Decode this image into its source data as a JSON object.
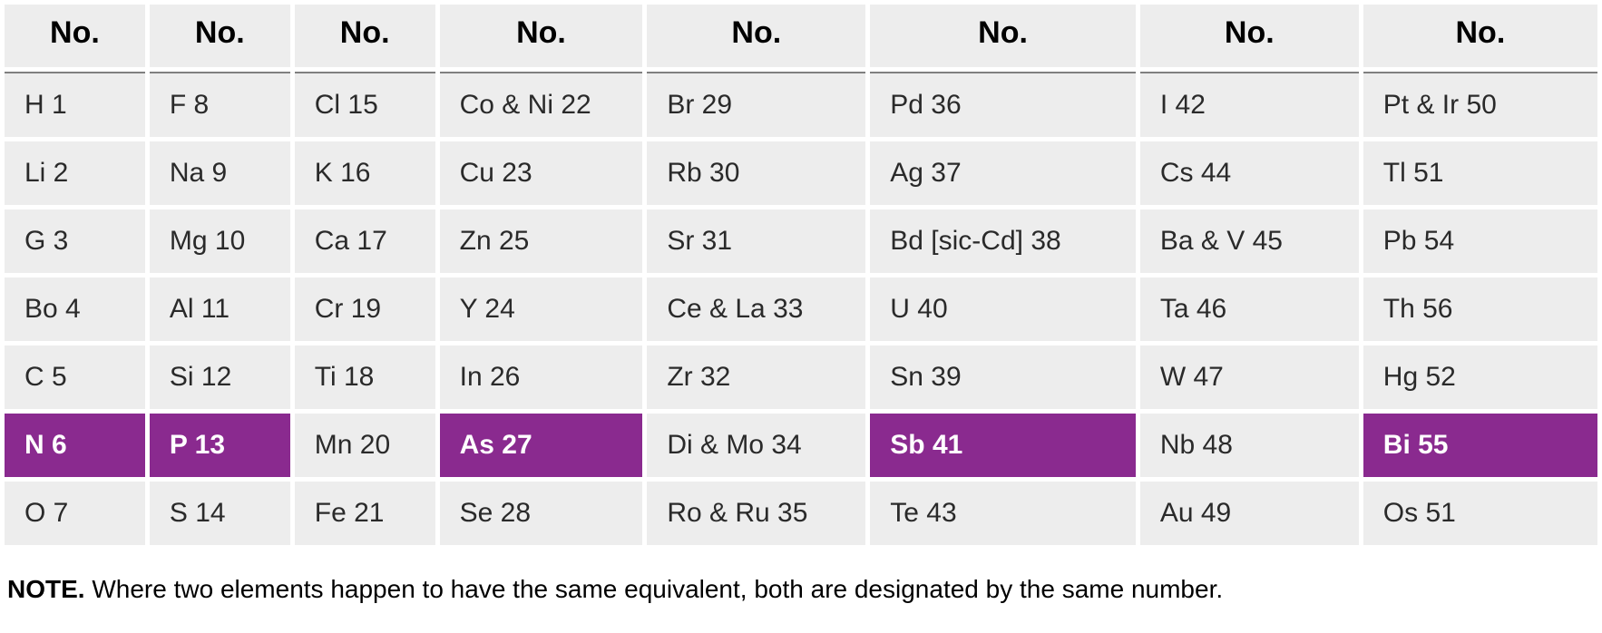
{
  "table": {
    "header_label": "No.",
    "highlight_color": "#8a2a8f",
    "highlight_text_color": "#ffffff",
    "cell_bg": "#ededed",
    "cell_text": "#2a2a2a",
    "font_size_header": 34,
    "font_size_cell": 30,
    "divider_color": "#808080",
    "columns": 8,
    "rows": [
      [
        {
          "t": "H 1",
          "hl": false
        },
        {
          "t": "F 8",
          "hl": false
        },
        {
          "t": "Cl 15",
          "hl": false
        },
        {
          "t": "Co & Ni 22",
          "hl": false
        },
        {
          "t": "Br 29",
          "hl": false
        },
        {
          "t": "Pd 36",
          "hl": false
        },
        {
          "t": "I 42",
          "hl": false
        },
        {
          "t": "Pt & Ir 50",
          "hl": false
        }
      ],
      [
        {
          "t": "Li 2",
          "hl": false
        },
        {
          "t": "Na 9",
          "hl": false
        },
        {
          "t": "K 16",
          "hl": false
        },
        {
          "t": "Cu 23",
          "hl": false
        },
        {
          "t": "Rb 30",
          "hl": false
        },
        {
          "t": "Ag 37",
          "hl": false
        },
        {
          "t": "Cs 44",
          "hl": false
        },
        {
          "t": "Tl 51",
          "hl": false
        }
      ],
      [
        {
          "t": "G 3",
          "hl": false
        },
        {
          "t": "Mg 10",
          "hl": false
        },
        {
          "t": "Ca 17",
          "hl": false
        },
        {
          "t": "Zn 25",
          "hl": false
        },
        {
          "t": "Sr 31",
          "hl": false
        },
        {
          "t": "Bd [sic-Cd] 38",
          "hl": false
        },
        {
          "t": "Ba & V 45",
          "hl": false
        },
        {
          "t": "Pb 54",
          "hl": false
        }
      ],
      [
        {
          "t": "Bo 4",
          "hl": false
        },
        {
          "t": "Al 11",
          "hl": false
        },
        {
          "t": "Cr 19",
          "hl": false
        },
        {
          "t": "Y 24",
          "hl": false
        },
        {
          "t": "Ce & La 33",
          "hl": false
        },
        {
          "t": "U 40",
          "hl": false
        },
        {
          "t": "Ta 46",
          "hl": false
        },
        {
          "t": "Th 56",
          "hl": false
        }
      ],
      [
        {
          "t": "C 5",
          "hl": false
        },
        {
          "t": "Si 12",
          "hl": false
        },
        {
          "t": "Ti 18",
          "hl": false
        },
        {
          "t": "In 26",
          "hl": false
        },
        {
          "t": "Zr 32",
          "hl": false
        },
        {
          "t": "Sn 39",
          "hl": false
        },
        {
          "t": "W 47",
          "hl": false
        },
        {
          "t": "Hg 52",
          "hl": false
        }
      ],
      [
        {
          "t": "N 6",
          "hl": true
        },
        {
          "t": "P 13",
          "hl": true
        },
        {
          "t": "Mn 20",
          "hl": false
        },
        {
          "t": "As 27",
          "hl": true
        },
        {
          "t": "Di & Mo 34",
          "hl": false
        },
        {
          "t": "Sb 41",
          "hl": true
        },
        {
          "t": "Nb 48",
          "hl": false
        },
        {
          "t": "Bi 55",
          "hl": true
        }
      ],
      [
        {
          "t": "O 7",
          "hl": false
        },
        {
          "t": "S 14",
          "hl": false
        },
        {
          "t": "Fe 21",
          "hl": false
        },
        {
          "t": "Se 28",
          "hl": false
        },
        {
          "t": "Ro & Ru 35",
          "hl": false
        },
        {
          "t": "Te 43",
          "hl": false
        },
        {
          "t": "Au 49",
          "hl": false
        },
        {
          "t": "Os 51",
          "hl": false
        }
      ]
    ]
  },
  "note": {
    "label": "NOTE.",
    "text": "Where two elements happen to have the same equivalent, both are designated by the same number."
  }
}
